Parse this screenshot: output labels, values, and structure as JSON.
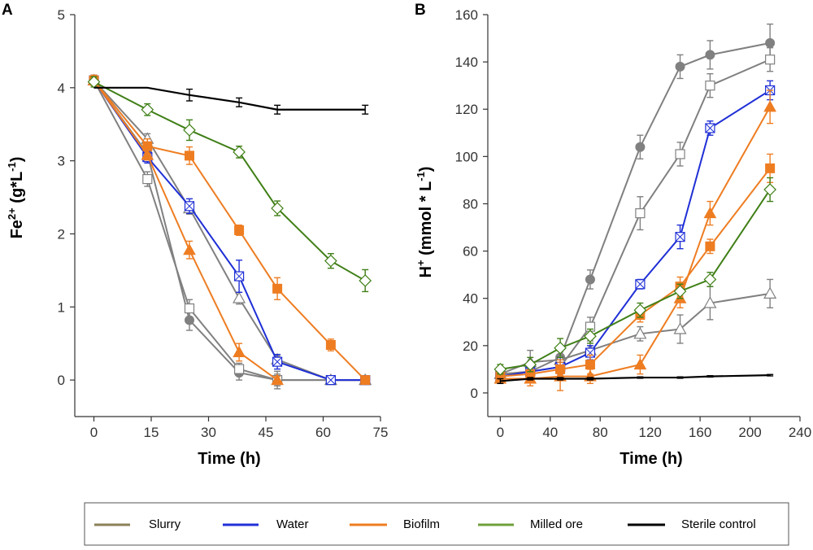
{
  "colors": {
    "slurry": "#808080",
    "water": "#1f2fd6",
    "biofilm": "#ee7d22",
    "milled": "#3f7f16",
    "sterile": "#000000",
    "slurry_legend": "#8b8158",
    "milled_legend": "#6fa03c"
  },
  "legend": {
    "items": [
      {
        "label": "Slurry",
        "color": "#8b8158"
      },
      {
        "label": "Water",
        "color": "#1f2fd6"
      },
      {
        "label": "Biofilm",
        "color": "#ee7d22"
      },
      {
        "label": "Milled ore",
        "color": "#6fa03c"
      },
      {
        "label": "Sterile control",
        "color": "#000000"
      }
    ]
  },
  "chart_data": [
    {
      "panel": "A",
      "type": "line",
      "xlabel": "Time (h)",
      "ylabel": "Fe2+ (g*L-1)",
      "ylabel_parts": {
        "base": "Fe",
        "sup1": "2+",
        "mid": " (g*L",
        "sup2": "-1",
        "end": ")"
      },
      "xlim": [
        -5,
        75
      ],
      "ylim": [
        -0.5,
        5
      ],
      "xticks": [
        0,
        15,
        30,
        45,
        60,
        75
      ],
      "yticks": [
        0,
        1,
        2,
        3,
        4,
        5
      ],
      "series": [
        {
          "name": "Slurry (filled circle)",
          "group": "slurry",
          "marker": "circle-filled",
          "x": [
            0,
            14,
            25,
            38,
            48,
            62,
            71
          ],
          "y": [
            4.1,
            3.1,
            0.82,
            0.1,
            0.0,
            0.0,
            0.0
          ],
          "err": [
            0.07,
            0.1,
            0.14,
            0.1,
            0.12,
            0.03,
            0.03
          ]
        },
        {
          "name": "Slurry (open square)",
          "group": "slurry",
          "marker": "square-open",
          "x": [
            0,
            14,
            25,
            38,
            48,
            62,
            71
          ],
          "y": [
            4.1,
            2.75,
            0.98,
            0.15,
            0.0,
            0.0,
            0.0
          ],
          "err": [
            0.07,
            0.1,
            0.12,
            0.08,
            0.08,
            0.03,
            0.03
          ]
        },
        {
          "name": "Slurry (open triangle)",
          "group": "slurry",
          "marker": "triangle-open",
          "x": [
            0,
            14,
            25,
            38,
            48,
            62,
            71
          ],
          "y": [
            4.1,
            3.3,
            2.35,
            1.12,
            0.28,
            0.0,
            0.0
          ],
          "err": [
            0.07,
            0.07,
            0.08,
            0.08,
            0.05,
            0.03,
            0.03
          ]
        },
        {
          "name": "Water",
          "group": "water",
          "marker": "square-cross",
          "x": [
            0,
            14,
            25,
            38,
            48,
            62,
            71
          ],
          "y": [
            4.1,
            3.05,
            2.38,
            1.42,
            0.25,
            0.0,
            0.0
          ],
          "err": [
            0.07,
            0.08,
            0.1,
            0.22,
            0.1,
            0.03,
            0.03
          ]
        },
        {
          "name": "Biofilm (square)",
          "group": "biofilm",
          "marker": "square-filled",
          "x": [
            0,
            14,
            25,
            38,
            48,
            62,
            71
          ],
          "y": [
            4.1,
            3.2,
            3.07,
            2.05,
            1.25,
            0.48,
            0.0
          ],
          "err": [
            0.07,
            0.1,
            0.12,
            0.07,
            0.15,
            0.08,
            0.03
          ]
        },
        {
          "name": "Biofilm (triangle)",
          "group": "biofilm",
          "marker": "triangle-filled",
          "x": [
            0,
            14,
            25,
            38,
            48
          ],
          "y": [
            4.1,
            3.08,
            1.78,
            0.38,
            0.0
          ],
          "err": [
            0.07,
            0.07,
            0.12,
            0.12,
            0.05
          ]
        },
        {
          "name": "Milled ore",
          "group": "milled",
          "marker": "diamond-open",
          "x": [
            0,
            14,
            25,
            38,
            48,
            62,
            71
          ],
          "y": [
            4.08,
            3.7,
            3.42,
            3.12,
            2.35,
            1.63,
            1.36
          ],
          "err": [
            0.07,
            0.08,
            0.14,
            0.08,
            0.1,
            0.1,
            0.15
          ]
        },
        {
          "name": "Sterile control",
          "group": "sterile",
          "marker": "none",
          "x": [
            0,
            14,
            25,
            38,
            48,
            62,
            71
          ],
          "y": [
            4.0,
            4.0,
            3.9,
            3.8,
            3.7,
            3.7,
            3.7
          ],
          "err": [
            0.0,
            0.0,
            0.08,
            0.06,
            0.06,
            0.0,
            0.06
          ]
        }
      ]
    },
    {
      "panel": "B",
      "type": "line",
      "xlabel": "Time (h)",
      "ylabel": "H+ (mmol * L-1)",
      "ylabel_parts": {
        "base": "H",
        "sup1": "+",
        "mid": " (mmol * L",
        "sup2": "-1",
        "end": ")"
      },
      "xlim": [
        -10,
        240
      ],
      "ylim": [
        -10,
        160
      ],
      "xticks": [
        0,
        40,
        80,
        120,
        160,
        200,
        240
      ],
      "yticks": [
        0,
        20,
        40,
        60,
        80,
        100,
        120,
        140,
        160
      ],
      "series": [
        {
          "name": "Slurry (filled circle)",
          "group": "slurry",
          "marker": "circle-filled",
          "x": [
            0,
            24,
            48,
            72,
            112,
            144,
            168,
            216
          ],
          "y": [
            8,
            9,
            15,
            48,
            104,
            138,
            143,
            148
          ],
          "err": [
            2,
            3,
            4,
            4,
            5,
            5,
            6,
            8
          ]
        },
        {
          "name": "Slurry (open square)",
          "group": "slurry",
          "marker": "square-open",
          "x": [
            0,
            24,
            48,
            72,
            112,
            144,
            168,
            216
          ],
          "y": [
            8,
            9,
            11,
            28,
            76,
            101,
            130,
            141
          ],
          "err": [
            2,
            3,
            4,
            4,
            7,
            5,
            5,
            5
          ]
        },
        {
          "name": "Slurry (open triangle)",
          "group": "slurry",
          "marker": "triangle-open",
          "x": [
            0,
            24,
            48,
            72,
            112,
            144,
            168,
            216
          ],
          "y": [
            8,
            13,
            14,
            18,
            25,
            27,
            38,
            42
          ],
          "err": [
            2,
            5,
            6,
            4,
            3,
            6,
            7,
            6
          ]
        },
        {
          "name": "Water",
          "group": "water",
          "marker": "square-cross",
          "x": [
            0,
            24,
            48,
            72,
            112,
            144,
            168,
            216
          ],
          "y": [
            7,
            9,
            11,
            17,
            46,
            66,
            112,
            128
          ],
          "err": [
            2,
            3,
            4,
            3,
            2,
            5,
            3,
            4
          ]
        },
        {
          "name": "Biofilm (square)",
          "group": "biofilm",
          "marker": "square-filled",
          "x": [
            0,
            24,
            48,
            72,
            112,
            144,
            168,
            216
          ],
          "y": [
            7,
            8,
            10,
            12,
            33,
            45,
            62,
            95
          ],
          "err": [
            2,
            3,
            4,
            4,
            3,
            4,
            3,
            6
          ]
        },
        {
          "name": "Biofilm (triangle)",
          "group": "biofilm",
          "marker": "triangle-filled",
          "x": [
            0,
            24,
            48,
            72,
            112,
            144,
            168,
            216
          ],
          "y": [
            6,
            6,
            7,
            7,
            12,
            40,
            76,
            121
          ],
          "err": [
            2,
            3,
            6,
            3,
            4,
            4,
            5,
            7
          ]
        },
        {
          "name": "Milled ore",
          "group": "milled",
          "marker": "diamond-open",
          "x": [
            0,
            24,
            48,
            72,
            112,
            144,
            168,
            216
          ],
          "y": [
            10,
            12,
            19,
            24,
            35,
            43,
            48,
            86
          ],
          "err": [
            2,
            3,
            4,
            3,
            3,
            3,
            3,
            5
          ]
        },
        {
          "name": "Sterile control",
          "group": "sterile",
          "marker": "none",
          "x": [
            0,
            24,
            48,
            72,
            112,
            144,
            168,
            216
          ],
          "y": [
            5,
            6,
            6,
            6,
            6.5,
            6.5,
            7,
            7.5
          ],
          "err": [
            1,
            0.5,
            0.5,
            0.5,
            0.3,
            0.3,
            0.3,
            0.3
          ]
        }
      ]
    }
  ]
}
